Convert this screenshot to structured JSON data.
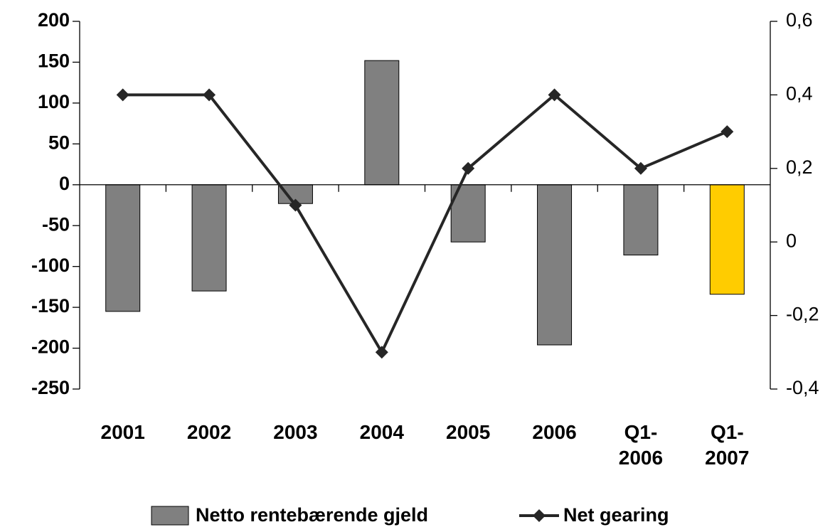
{
  "chart_data": {
    "type": "bar_line",
    "categories": [
      "2001",
      "2002",
      "2003",
      "2004",
      "2005",
      "2006",
      "Q1-2006",
      "Q1-2007"
    ],
    "series": [
      {
        "name": "Netto rentebærende gjeld",
        "type": "bar",
        "color": "#808080",
        "colors": [
          "#808080",
          "#808080",
          "#808080",
          "#808080",
          "#808080",
          "#808080",
          "#808080",
          "#ffcc00"
        ],
        "values": [
          -155,
          -130,
          -23,
          152,
          -70,
          -196,
          -86,
          -134
        ]
      },
      {
        "name": "Net gearing",
        "type": "line",
        "axis": "y2",
        "color": "#262626",
        "values": [
          0.4,
          0.4,
          0.1,
          -0.3,
          0.2,
          0.4,
          0.2,
          0.3
        ]
      }
    ],
    "ylim": [
      -250,
      200
    ],
    "yticks": [
      -250,
      -200,
      -150,
      -100,
      -50,
      0,
      50,
      100,
      150,
      200
    ],
    "y2lim": [
      -0.4,
      0.6
    ],
    "y2ticks": [
      {
        "value": -0.4,
        "label": "-0,4"
      },
      {
        "value": -0.2,
        "label": "-0,2"
      },
      0,
      {
        "value": 0.2,
        "label": "0,2"
      },
      {
        "value": 0.4,
        "label": "0,4"
      },
      {
        "value": 0.6,
        "label": "0,6"
      }
    ],
    "legend": "bottom"
  }
}
